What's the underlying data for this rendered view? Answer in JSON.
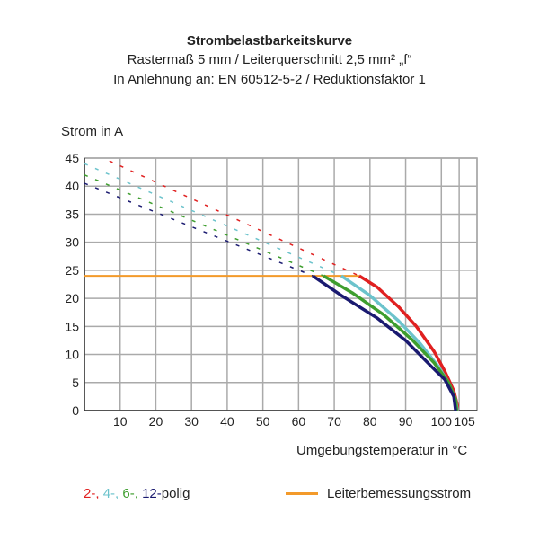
{
  "chart_data": {
    "type": "line",
    "title": "Strombelastbarkeitskurve",
    "subtitle": [
      "Rastermaß 5 mm / Leiterquerschnitt 2,5 mm² „f“",
      "In Anlehnung an: EN 60512-5-2 / Reduktionsfaktor 1"
    ],
    "xlabel": "Umgebungstemperatur in °C",
    "ylabel": "Strom in A",
    "xlim": [
      0,
      110
    ],
    "ylim": [
      0,
      45
    ],
    "xticks": [
      10,
      20,
      30,
      40,
      50,
      60,
      70,
      80,
      90,
      100,
      105
    ],
    "yticks": [
      0,
      5,
      10,
      15,
      20,
      25,
      30,
      35,
      40,
      45
    ],
    "grid": true,
    "series": [
      {
        "name": "2-polig",
        "label": "2-",
        "color": "#e02020",
        "dashed": [
          [
            7,
            44.5
          ],
          [
            77,
            24
          ]
        ],
        "solid": [
          [
            77,
            24
          ],
          [
            82,
            22
          ],
          [
            88,
            18.5
          ],
          [
            93,
            15
          ],
          [
            98,
            10.5
          ],
          [
            101,
            7
          ],
          [
            103.5,
            3.5
          ],
          [
            104.5,
            1
          ],
          [
            104.5,
            0
          ]
        ]
      },
      {
        "name": "4-polig",
        "label": "4-",
        "color": "#6cc3cc",
        "dashed": [
          [
            0,
            44
          ],
          [
            72,
            24
          ]
        ],
        "solid": [
          [
            72,
            24
          ],
          [
            80,
            20.5
          ],
          [
            88,
            16
          ],
          [
            94,
            12
          ],
          [
            99,
            8
          ],
          [
            102,
            5
          ],
          [
            104,
            2
          ],
          [
            104.5,
            0
          ]
        ]
      },
      {
        "name": "6-polig",
        "label": "6-",
        "color": "#3e9e2e",
        "dashed": [
          [
            0,
            42
          ],
          [
            67,
            24
          ]
        ],
        "solid": [
          [
            67,
            24
          ],
          [
            75,
            21
          ],
          [
            84,
            17
          ],
          [
            92,
            12.5
          ],
          [
            98,
            8.5
          ],
          [
            102,
            5
          ],
          [
            104,
            2
          ],
          [
            104.3,
            0
          ]
        ]
      },
      {
        "name": "12-polig",
        "label": "12-",
        "color": "#1a1a70",
        "dashed": [
          [
            0,
            40.5
          ],
          [
            64,
            24
          ]
        ],
        "solid": [
          [
            64,
            24
          ],
          [
            72,
            20.5
          ],
          [
            82,
            16.5
          ],
          [
            90,
            12.5
          ],
          [
            97,
            8
          ],
          [
            101,
            5.5
          ],
          [
            103.5,
            2.5
          ],
          [
            104,
            0
          ]
        ]
      }
    ],
    "rated_current": {
      "name": "Leiterbemessungsstrom",
      "color": "#f39a2a",
      "value": 24,
      "x": [
        0,
        77
      ]
    },
    "legend": {
      "suffix": "polig",
      "placement": "bottom"
    }
  }
}
